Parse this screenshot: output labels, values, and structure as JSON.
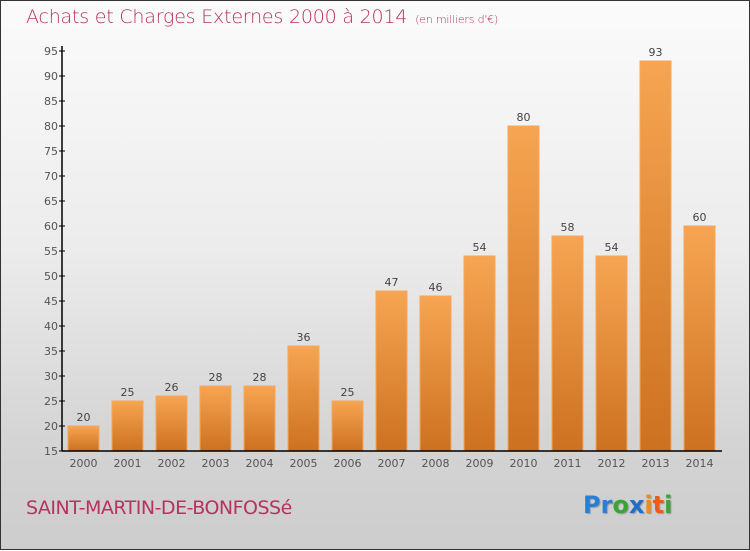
{
  "header": {
    "title": "Achats et Charges Externes 2000 à 2014",
    "subtitle": "(en milliers d'€)"
  },
  "footer": {
    "city": "SAINT-MARTIN-DE-BONFOSSé",
    "logo": {
      "letters": [
        {
          "ch": "P",
          "color": "#2a7fd4"
        },
        {
          "ch": "r",
          "color": "#2a7fd4"
        },
        {
          "ch": "o",
          "color": "#3aa535"
        },
        {
          "ch": "x",
          "color": "#1f6fc9"
        },
        {
          "ch": "i",
          "color": "#f08a1c"
        },
        {
          "ch": "t",
          "color": "#ee5a1c"
        },
        {
          "ch": "i",
          "color": "#3aa535"
        }
      ]
    }
  },
  "colors": {
    "bar_top": "#f7a552",
    "bar_bottom": "#cc7120",
    "title": "#b8325e"
  },
  "chart_data": {
    "type": "bar",
    "title": "Achats et Charges Externes 2000 à 2014",
    "subtitle": "(en milliers d'€)",
    "xlabel": "",
    "ylabel": "",
    "categories": [
      "2000",
      "2001",
      "2002",
      "2003",
      "2004",
      "2005",
      "2006",
      "2007",
      "2008",
      "2009",
      "2010",
      "2011",
      "2012",
      "2013",
      "2014"
    ],
    "values": [
      20,
      25,
      26,
      28,
      28,
      36,
      25,
      47,
      46,
      54,
      80,
      58,
      54,
      93,
      60
    ],
    "ylim": [
      15,
      95
    ],
    "yticks": [
      15,
      20,
      25,
      30,
      35,
      40,
      45,
      50,
      55,
      60,
      65,
      70,
      75,
      80,
      85,
      90,
      95
    ],
    "grid": false,
    "legend": "none"
  }
}
